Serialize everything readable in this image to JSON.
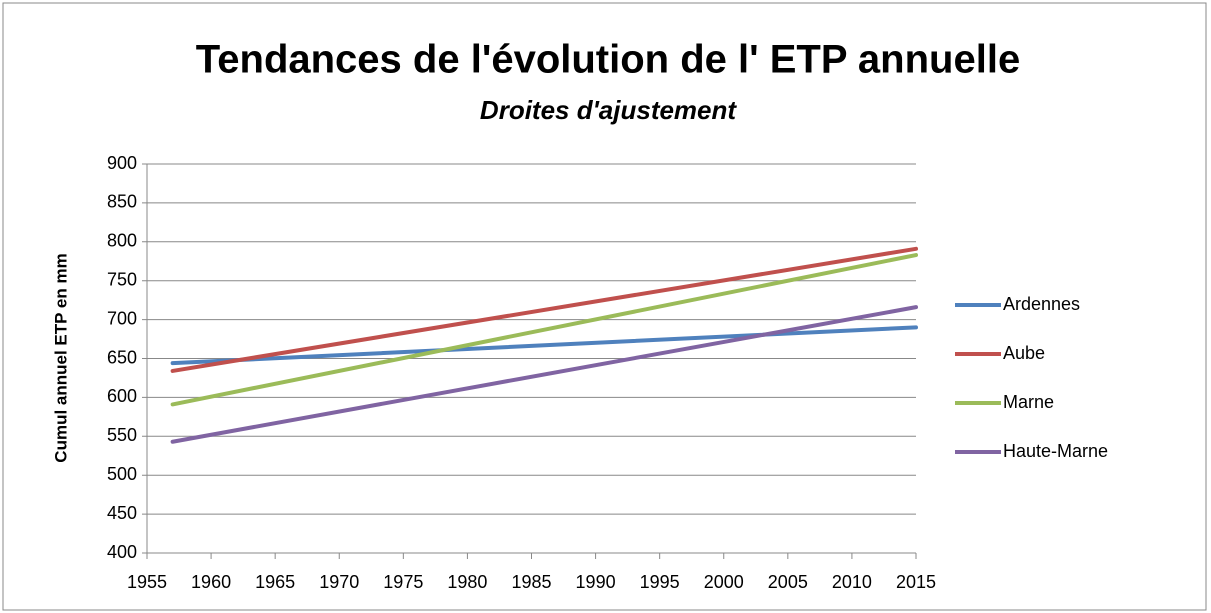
{
  "chart_data": {
    "type": "line",
    "title": "Tendances de l'évolution de l' ETP annuelle",
    "subtitle": "Droites d'ajustement",
    "y_label": "Cumul  annuel ETP en mm",
    "x": [
      1957,
      2015
    ],
    "series": [
      {
        "name": "Ardennes",
        "color": "#4f81bd",
        "values": [
          644,
          690
        ]
      },
      {
        "name": "Aube",
        "color": "#c0504d",
        "values": [
          634,
          791
        ]
      },
      {
        "name": "Marne",
        "color": "#9bbb59",
        "values": [
          591,
          783
        ]
      },
      {
        "name": "Haute-Marne",
        "color": "#8064a2",
        "values": [
          543,
          716
        ]
      }
    ],
    "xlim": [
      1955,
      2015
    ],
    "xticks": [
      1955,
      1960,
      1965,
      1970,
      1975,
      1980,
      1985,
      1990,
      1995,
      2000,
      2005,
      2010,
      2015
    ],
    "ylim": [
      400,
      900
    ],
    "yticks": [
      400,
      450,
      500,
      550,
      600,
      650,
      700,
      750,
      800,
      850,
      900
    ],
    "grid": true,
    "legend": "right"
  }
}
